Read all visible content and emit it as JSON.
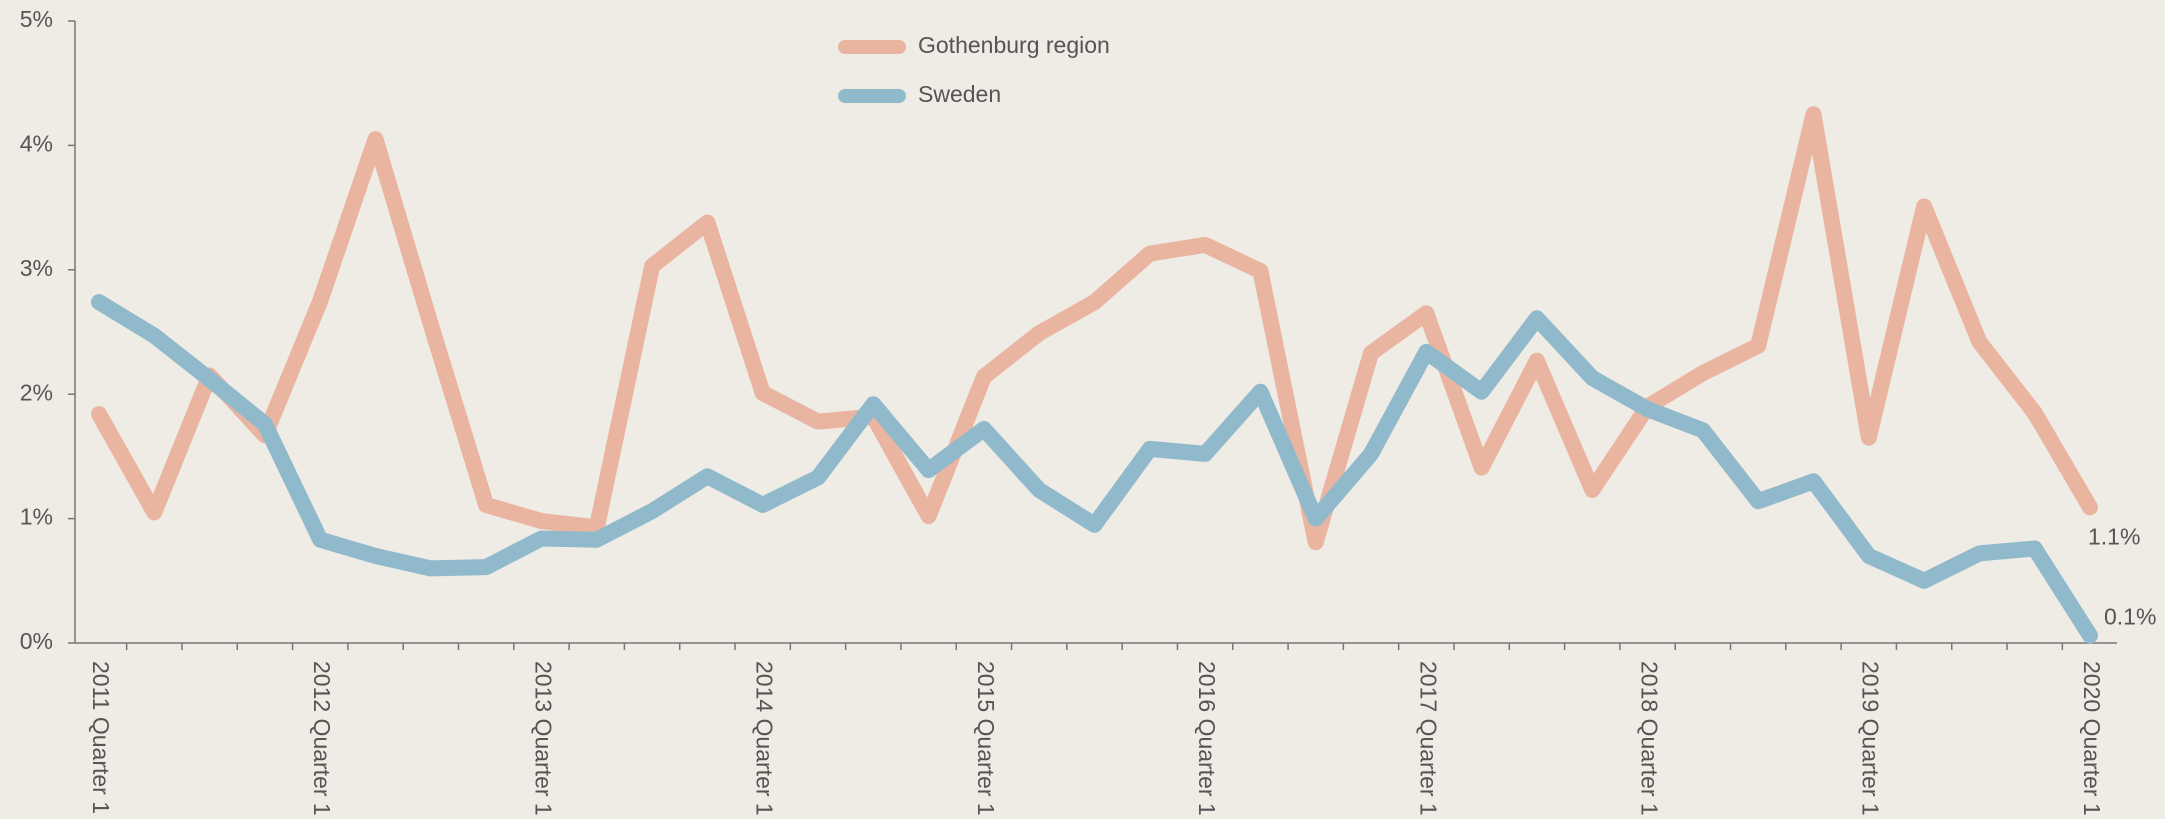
{
  "chart_data": {
    "type": "line",
    "categories": [
      "2011 Quarter 1",
      null,
      null,
      null,
      "2012 Quarter 1",
      null,
      null,
      null,
      "2013 Quarter 1",
      null,
      null,
      null,
      "2014 Quarter 1",
      null,
      null,
      null,
      "2015 Quarter 1",
      null,
      null,
      null,
      "2016 Quarter 1",
      null,
      null,
      null,
      "2017 Quarter 1",
      null,
      null,
      null,
      "2018 Quarter 1",
      null,
      null,
      null,
      "2019 Quarter 1",
      null,
      null,
      null,
      "2020 Quarter 1"
    ],
    "series": [
      {
        "name": "Gothenburg region",
        "color": "#e9b5a1",
        "values": [
          1.84,
          1.05,
          2.15,
          1.67,
          2.75,
          4.05,
          2.56,
          1.11,
          0.98,
          0.93,
          3.03,
          3.38,
          2.01,
          1.78,
          1.82,
          1.02,
          2.14,
          2.49,
          2.74,
          3.13,
          3.2,
          2.99,
          0.81,
          2.33,
          2.65,
          1.41,
          2.27,
          1.23,
          1.9,
          2.17,
          2.39,
          4.25,
          1.65,
          3.51,
          2.42,
          1.85,
          1.09
        ],
        "value_labels": [
          null,
          null,
          null,
          null,
          null,
          null,
          null,
          null,
          null,
          null,
          null,
          null,
          null,
          null,
          null,
          null,
          null,
          null,
          null,
          null,
          null,
          null,
          null,
          null,
          null,
          null,
          null,
          null,
          null,
          null,
          null,
          null,
          null,
          null,
          null,
          null,
          "1.1%"
        ]
      },
      {
        "name": "Sweden",
        "color": "#90b9cc",
        "values": [
          2.74,
          2.47,
          2.12,
          1.76,
          0.83,
          0.7,
          0.6,
          0.61,
          0.84,
          0.83,
          1.06,
          1.34,
          1.11,
          1.33,
          1.92,
          1.39,
          1.72,
          1.23,
          0.95,
          1.56,
          1.52,
          2.02,
          1.0,
          1.52,
          2.34,
          2.02,
          2.61,
          2.13,
          1.88,
          1.71,
          1.14,
          1.3,
          0.7,
          0.5,
          0.72,
          0.76,
          0.06
        ],
        "value_labels": [
          null,
          null,
          null,
          null,
          null,
          null,
          null,
          null,
          null,
          null,
          null,
          null,
          null,
          null,
          null,
          null,
          null,
          null,
          null,
          null,
          null,
          null,
          null,
          null,
          null,
          null,
          null,
          null,
          null,
          null,
          null,
          null,
          null,
          null,
          null,
          null,
          "0.1%"
        ]
      }
    ],
    "ylim": [
      0,
      5
    ],
    "yticks": [
      {
        "value": 0,
        "label": "0%"
      },
      {
        "value": 1,
        "label": "1%"
      },
      {
        "value": 2,
        "label": "2%"
      },
      {
        "value": 3,
        "label": "3%"
      },
      {
        "value": 4,
        "label": "4%"
      },
      {
        "value": 5,
        "label": "5%"
      }
    ],
    "grid": false,
    "legend": "top"
  }
}
